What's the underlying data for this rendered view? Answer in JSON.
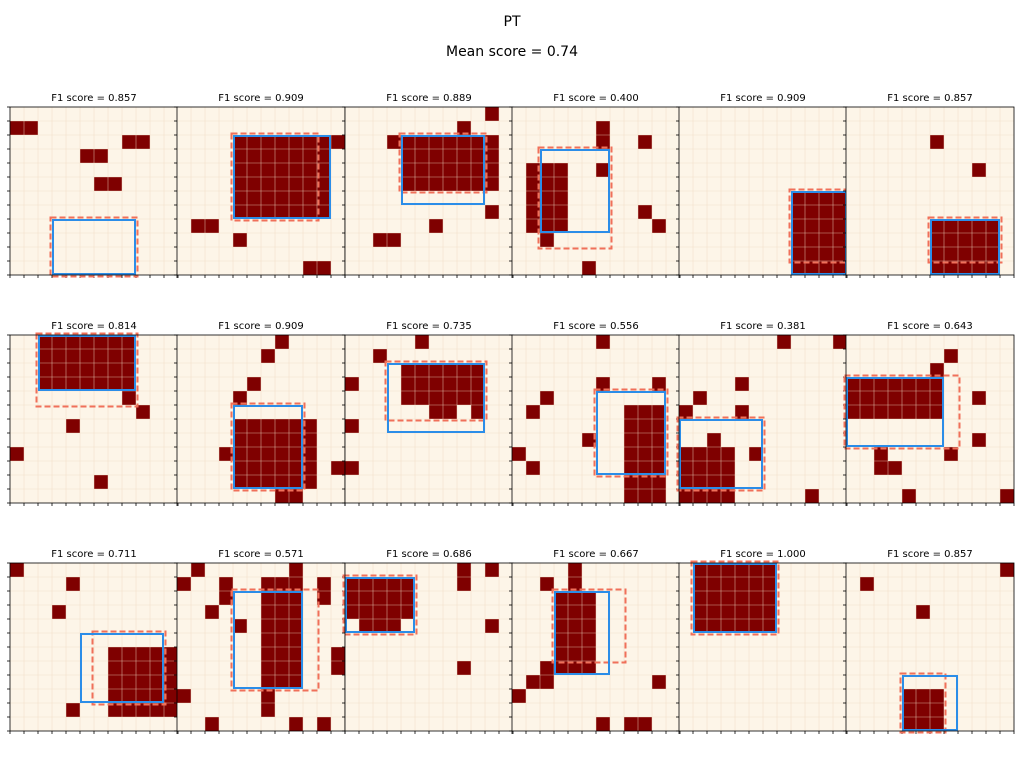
{
  "title": "PT",
  "subtitle": "Mean score = 0.74",
  "chart_data": {
    "type": "heatmap",
    "grid_size": 12,
    "colors": {
      "background": "#fdf5e8",
      "grid_line": "#f0d9c2",
      "cell": "#7f0000",
      "pred_box": "#2b8de8",
      "true_box": "#f0705a"
    },
    "panels": [
      {
        "title": "F1 score = 0.857",
        "f1": 0.857,
        "cells": [
          [
            8,
            3,
            6,
            5
          ],
          [
            1,
            0,
            1,
            1
          ],
          [
            2,
            8,
            2,
            9
          ],
          [
            3,
            5,
            3,
            6
          ],
          [
            5,
            6,
            5,
            7
          ]
        ],
        "pred_box": [
          8,
          3,
          12,
          9
        ],
        "true_box": [
          8,
          3,
          12,
          9
        ]
      },
      {
        "title": "F1 score = 0.909",
        "f1": 0.909,
        "cells": [
          [
            2,
            4,
            7,
            10
          ],
          [
            8,
            1,
            8,
            2
          ],
          [
            9,
            4,
            9,
            4
          ],
          [
            11,
            9,
            11,
            10
          ],
          [
            2,
            11,
            2,
            11
          ]
        ],
        "pred_box": [
          2,
          4,
          8,
          11
        ],
        "true_box": [
          2,
          4,
          8,
          10
        ]
      },
      {
        "title": "F1 score = 0.889",
        "f1": 0.889,
        "cells": [
          [
            2,
            4,
            5,
            10
          ],
          [
            0,
            10,
            0,
            10
          ],
          [
            1,
            8,
            1,
            8
          ],
          [
            2,
            3,
            2,
            3
          ],
          [
            9,
            2,
            9,
            3
          ],
          [
            8,
            6,
            8,
            6
          ],
          [
            7,
            10,
            7,
            10
          ]
        ],
        "pred_box": [
          2,
          4,
          7,
          10
        ],
        "true_box": [
          2,
          4,
          6,
          10
        ]
      },
      {
        "title": "F1 score = 0.400",
        "f1": 0.4,
        "cells": [
          [
            1,
            6,
            2,
            6
          ],
          [
            2,
            9,
            2,
            9
          ],
          [
            4,
            1,
            8,
            3
          ],
          [
            9,
            2,
            9,
            2
          ],
          [
            7,
            9,
            7,
            9
          ],
          [
            8,
            10,
            8,
            10
          ],
          [
            11,
            5,
            11,
            5
          ],
          [
            4,
            6,
            4,
            6
          ]
        ],
        "pred_box": [
          3,
          2,
          9,
          7
        ],
        "true_box": [
          3,
          2,
          10,
          7
        ]
      },
      {
        "title": "F1 score = 0.909",
        "f1": 0.909,
        "cells": [
          [
            6,
            8,
            11,
            11
          ]
        ],
        "pred_box": [
          6,
          8,
          12,
          12
        ],
        "true_box": [
          6,
          8,
          11,
          12
        ]
      },
      {
        "title": "F1 score = 0.857",
        "f1": 0.857,
        "cells": [
          [
            8,
            6,
            11,
            10
          ],
          [
            2,
            6,
            2,
            6
          ],
          [
            4,
            9,
            4,
            9
          ]
        ],
        "pred_box": [
          8,
          6,
          12,
          11
        ],
        "true_box": [
          8,
          6,
          11,
          11
        ]
      },
      {
        "title": "F1 score = 0.814",
        "f1": 0.814,
        "cells": [
          [
            0,
            2,
            3,
            8
          ],
          [
            4,
            8,
            4,
            8
          ],
          [
            5,
            9,
            5,
            9
          ],
          [
            6,
            4,
            6,
            4
          ],
          [
            8,
            0,
            8,
            0
          ],
          [
            10,
            6,
            10,
            6
          ]
        ],
        "pred_box": [
          0,
          2,
          4,
          9
        ],
        "true_box": [
          0,
          2,
          5,
          9
        ]
      },
      {
        "title": "F1 score = 0.909",
        "f1": 0.909,
        "cells": [
          [
            6,
            4,
            10,
            9
          ],
          [
            0,
            7,
            0,
            7
          ],
          [
            1,
            6,
            1,
            6
          ],
          [
            3,
            5,
            3,
            5
          ],
          [
            4,
            4,
            4,
            4
          ],
          [
            8,
            3,
            8,
            3
          ],
          [
            9,
            11,
            9,
            11
          ],
          [
            11,
            7,
            11,
            8
          ]
        ],
        "pred_box": [
          5,
          4,
          11,
          9
        ],
        "true_box": [
          5,
          4,
          11,
          9
        ]
      },
      {
        "title": "F1 score = 0.735",
        "f1": 0.735,
        "cells": [
          [
            2,
            4,
            4,
            9
          ],
          [
            5,
            6,
            5,
            7
          ],
          [
            2,
            9,
            5,
            9
          ],
          [
            0,
            5,
            0,
            5
          ],
          [
            1,
            2,
            1,
            2
          ],
          [
            3,
            0,
            3,
            0
          ],
          [
            6,
            0,
            6,
            0
          ],
          [
            9,
            0,
            9,
            0
          ]
        ],
        "pred_box": [
          2,
          3,
          7,
          10
        ],
        "true_box": [
          2,
          3,
          6,
          10
        ]
      },
      {
        "title": "F1 score = 0.556",
        "f1": 0.556,
        "cells": [
          [
            5,
            8,
            11,
            10
          ],
          [
            0,
            6,
            0,
            6
          ],
          [
            3,
            6,
            3,
            6
          ],
          [
            3,
            10,
            3,
            10
          ],
          [
            4,
            2,
            4,
            2
          ],
          [
            5,
            1,
            5,
            1
          ],
          [
            7,
            5,
            7,
            5
          ],
          [
            8,
            0,
            8,
            0
          ],
          [
            9,
            1,
            9,
            1
          ]
        ],
        "pred_box": [
          4,
          6,
          10,
          11
        ],
        "true_box": [
          4,
          6,
          10,
          11
        ]
      },
      {
        "title": "F1 score = 0.381",
        "f1": 0.381,
        "cells": [
          [
            8,
            0,
            11,
            3
          ],
          [
            5,
            0,
            5,
            0
          ],
          [
            9,
            0,
            9,
            0
          ],
          [
            7,
            2,
            7,
            2
          ],
          [
            3,
            4,
            3,
            4
          ],
          [
            0,
            7,
            0,
            7
          ],
          [
            0,
            11,
            0,
            11
          ],
          [
            11,
            9,
            11,
            9
          ],
          [
            8,
            5,
            8,
            5
          ],
          [
            5,
            4,
            5,
            4
          ],
          [
            4,
            1,
            4,
            1
          ]
        ],
        "pred_box": [
          6,
          0,
          11,
          6
        ],
        "true_box": [
          6,
          0,
          11,
          6
        ]
      },
      {
        "title": "F1 score = 0.643",
        "f1": 0.643,
        "cells": [
          [
            3,
            0,
            5,
            6
          ],
          [
            2,
            6,
            2,
            6
          ],
          [
            1,
            7,
            1,
            7
          ],
          [
            4,
            9,
            4,
            9
          ],
          [
            7,
            9,
            7,
            9
          ],
          [
            8,
            7,
            8,
            7
          ],
          [
            8,
            2,
            9,
            2
          ],
          [
            9,
            3,
            9,
            3
          ],
          [
            11,
            4,
            11,
            4
          ],
          [
            11,
            11,
            11,
            11
          ]
        ],
        "pred_box": [
          3,
          0,
          8,
          7
        ],
        "true_box": [
          3,
          0,
          8,
          8
        ]
      },
      {
        "title": "F1 score = 0.711",
        "f1": 0.711,
        "cells": [
          [
            6,
            7,
            10,
            11
          ],
          [
            0,
            0,
            0,
            0
          ],
          [
            1,
            4,
            1,
            4
          ],
          [
            3,
            3,
            3,
            3
          ],
          [
            10,
            4,
            10,
            4
          ]
        ],
        "pred_box": [
          5,
          5,
          10,
          11
        ],
        "true_box": [
          5,
          6,
          10,
          11
        ]
      },
      {
        "title": "F1 score = 0.571",
        "f1": 0.571,
        "cells": [
          [
            1,
            6,
            8,
            8
          ],
          [
            0,
            1,
            0,
            1
          ],
          [
            1,
            0,
            1,
            0
          ],
          [
            3,
            2,
            3,
            2
          ],
          [
            1,
            3,
            2,
            3
          ],
          [
            4,
            4,
            4,
            4
          ],
          [
            6,
            11,
            7,
            11
          ],
          [
            8,
            8,
            8,
            8
          ],
          [
            9,
            0,
            9,
            0
          ],
          [
            9,
            6,
            10,
            6
          ],
          [
            11,
            2,
            11,
            2
          ],
          [
            11,
            8,
            11,
            8
          ],
          [
            11,
            10,
            11,
            10
          ],
          [
            1,
            10,
            2,
            10
          ],
          [
            0,
            8,
            0,
            8
          ]
        ],
        "pred_box": [
          2,
          4,
          9,
          9
        ],
        "true_box": [
          2,
          4,
          9,
          10
        ]
      },
      {
        "title": "F1 score = 0.686",
        "f1": 0.686,
        "cells": [
          [
            1,
            0,
            3,
            4
          ],
          [
            4,
            1,
            4,
            3
          ],
          [
            2,
            1,
            2,
            1
          ],
          [
            0,
            8,
            1,
            8
          ],
          [
            0,
            10,
            0,
            10
          ],
          [
            4,
            10,
            4,
            10
          ],
          [
            7,
            8,
            7,
            8
          ]
        ],
        "pred_box": [
          1,
          0,
          5,
          5
        ],
        "true_box": [
          1,
          0,
          5,
          5
        ]
      },
      {
        "title": "F1 score = 0.667",
        "f1": 0.667,
        "cells": [
          [
            2,
            3,
            7,
            5
          ],
          [
            0,
            4,
            1,
            4
          ],
          [
            1,
            2,
            1,
            2
          ],
          [
            7,
            2,
            8,
            2
          ],
          [
            8,
            1,
            8,
            1
          ],
          [
            9,
            0,
            9,
            0
          ],
          [
            11,
            6,
            11,
            6
          ],
          [
            11,
            8,
            11,
            9
          ],
          [
            8,
            10,
            8,
            10
          ],
          [
            3,
            5,
            3,
            5
          ]
        ],
        "pred_box": [
          2,
          3,
          8,
          7
        ],
        "true_box": [
          2,
          3,
          7,
          8
        ]
      },
      {
        "title": "F1 score = 1.000",
        "f1": 1.0,
        "cells": [
          [
            0,
            1,
            4,
            6
          ]
        ],
        "pred_box": [
          0,
          1,
          5,
          7
        ],
        "true_box": [
          0,
          1,
          5,
          7
        ]
      },
      {
        "title": "F1 score = 0.857",
        "f1": 0.857,
        "cells": [
          [
            9,
            4,
            11,
            6
          ],
          [
            0,
            11,
            0,
            11
          ],
          [
            1,
            1,
            1,
            1
          ],
          [
            3,
            5,
            3,
            5
          ]
        ],
        "pred_box": [
          8,
          4,
          12,
          8
        ],
        "true_box": [
          8,
          4,
          12,
          7
        ]
      }
    ]
  }
}
